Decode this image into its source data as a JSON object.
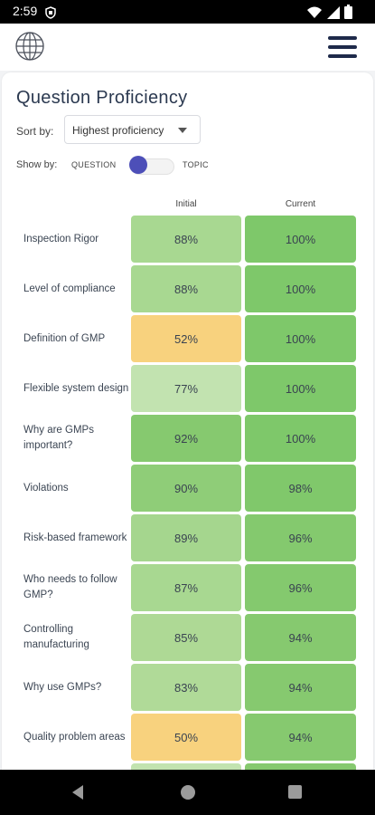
{
  "status": {
    "time": "2:59"
  },
  "header": {
    "logo_icon": "globe-icon",
    "menu_icon": "hamburger-menu-icon"
  },
  "page": {
    "title": "Question Proficiency",
    "sort_label": "Sort by:",
    "sort_value": "Highest proficiency",
    "show_label": "Show by:",
    "toggle_left": "QUESTION",
    "toggle_right": "TOPIC",
    "toggle_state": "QUESTION"
  },
  "table": {
    "columns": [
      "Initial",
      "Current"
    ],
    "rows": [
      {
        "label": "Inspection Rigor",
        "initial": "88%",
        "current": "100%"
      },
      {
        "label": "Level of compliance",
        "initial": "88%",
        "current": "100%"
      },
      {
        "label": "Definition of GMP",
        "initial": "52%",
        "current": "100%"
      },
      {
        "label": "Flexible system design",
        "initial": "77%",
        "current": "100%"
      },
      {
        "label": "Why are GMPs important?",
        "initial": "92%",
        "current": "100%"
      },
      {
        "label": "Violations",
        "initial": "90%",
        "current": "98%"
      },
      {
        "label": "Risk-based framework",
        "initial": "89%",
        "current": "96%"
      },
      {
        "label": "Who needs to follow GMP?",
        "initial": "87%",
        "current": "96%"
      },
      {
        "label": "Controlling manufacturing",
        "initial": "85%",
        "current": "94%"
      },
      {
        "label": "Why use GMPs?",
        "initial": "83%",
        "current": "94%"
      },
      {
        "label": "Quality problem areas",
        "initial": "50%",
        "current": "94%"
      },
      {
        "label": "",
        "initial": "",
        "current": ""
      }
    ]
  },
  "colors": {
    "accent": "#4d4fb8",
    "navy": "#1e2a4a",
    "cell_100": "#7ec86a",
    "cell_90s": "#86c96f",
    "cell_80s": "#a8d891",
    "cell_70s": "#c2e3b0",
    "cell_50s": "#f8d27e"
  }
}
